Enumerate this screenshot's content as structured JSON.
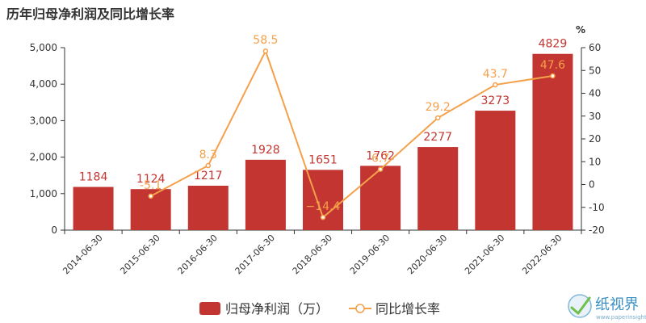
{
  "title": "历年归母净利润及同比增长率",
  "chart_data": {
    "type": "bar",
    "categories": [
      "2014-06-30",
      "2015-06-30",
      "2016-06-30",
      "2017-06-30",
      "2018-06-30",
      "2019-06-30",
      "2020-06-30",
      "2021-06-30",
      "2022-06-30"
    ],
    "series": [
      {
        "name": "归母净利润（万）",
        "type": "bar",
        "axis": "left",
        "values": [
          1184,
          1124,
          1217,
          1928,
          1651,
          1762,
          2277,
          3273,
          4829
        ],
        "color": "#c23531"
      },
      {
        "name": "同比增长率",
        "type": "line",
        "axis": "right",
        "values": [
          null,
          -5.1,
          8.3,
          58.5,
          -14.4,
          6.7,
          29.2,
          43.7,
          47.6
        ],
        "labels": [
          null,
          "-5.1",
          "8.3",
          "58.5",
          "−14.4",
          "6.7",
          "29.2",
          "43.7",
          "47.6"
        ],
        "color": "#f5a04a"
      }
    ],
    "yleft": {
      "ylim": [
        0,
        5000
      ],
      "ticks": [
        "0",
        "1,000",
        "2,000",
        "3,000",
        "4,000",
        "5,000"
      ]
    },
    "yright": {
      "label": "%",
      "ylim": [
        -20,
        60
      ],
      "ticks": [
        "-20",
        "-10",
        "0",
        "10",
        "20",
        "30",
        "40",
        "50",
        "60"
      ]
    },
    "grid": false,
    "legend": "bottom-center"
  },
  "watermark": {
    "brand": "纸视界",
    "site": "www.paperinsight.net"
  }
}
